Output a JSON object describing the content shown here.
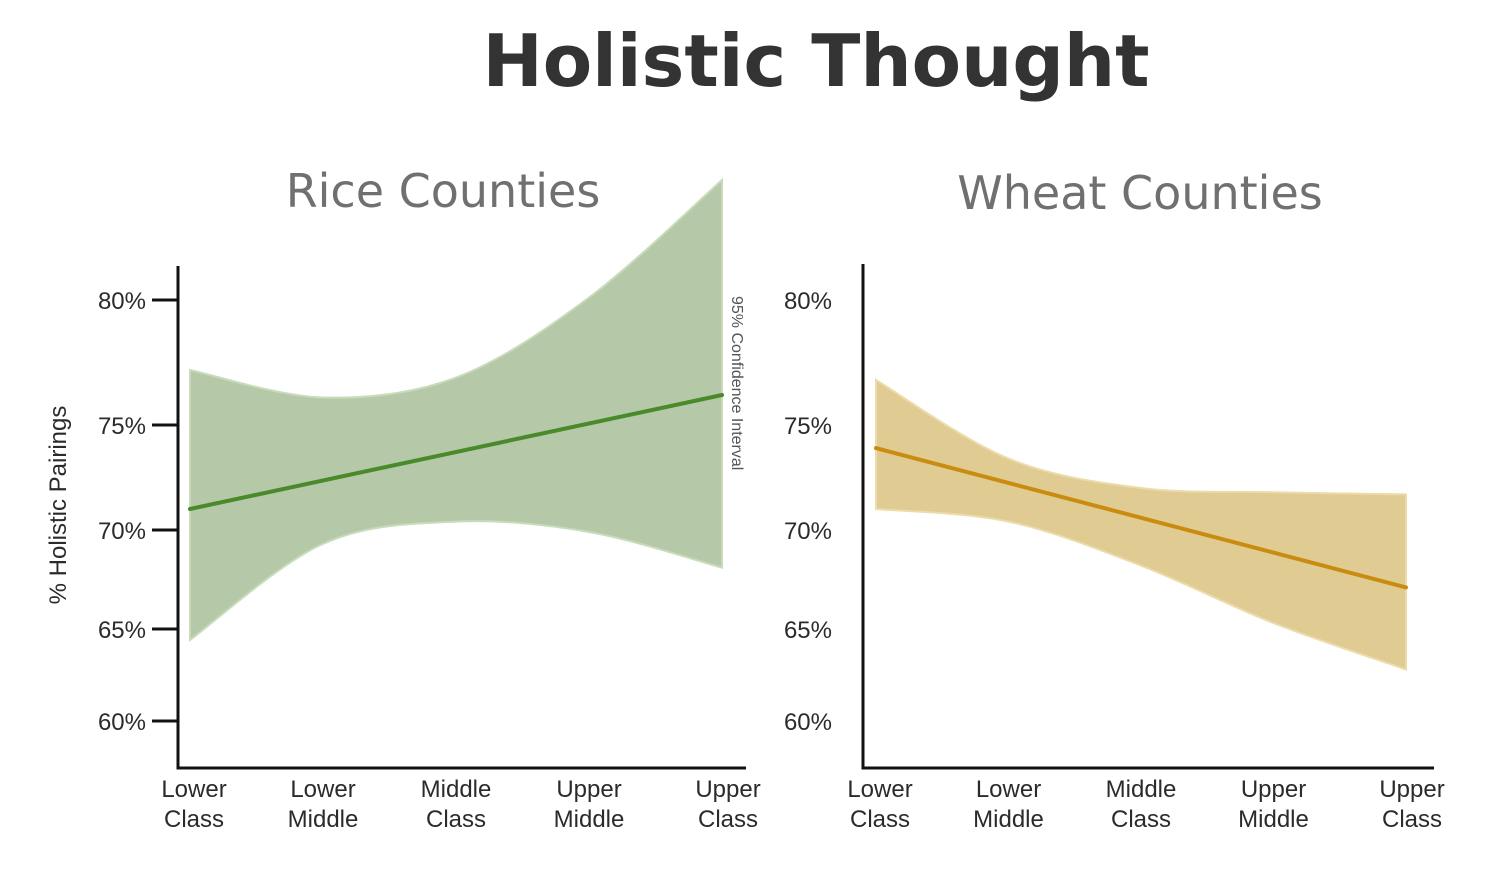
{
  "title": "Holistic Thought",
  "ylabel": "% Holistic Pairings",
  "ci_label": "95% Confidence Interval",
  "colors": {
    "rice_line": "#4a8a2a",
    "rice_band": "#b5c9a8",
    "rice_band_edge": "#c8dcbc",
    "wheat_line": "#c98c10",
    "wheat_band": "#e0cc92",
    "wheat_band_edge": "#ecdcab",
    "axis": "#111111"
  },
  "chart_data": [
    {
      "type": "line",
      "title": "Rice Counties",
      "categories": [
        "Lower Class",
        "Lower Middle",
        "Middle Class",
        "Upper Middle",
        "Upper Class"
      ],
      "category_lines": [
        [
          "Lower",
          "Class"
        ],
        [
          "Lower",
          "Middle"
        ],
        [
          "Middle",
          "Class"
        ],
        [
          "Upper",
          "Middle"
        ],
        [
          "Upper",
          "Class"
        ]
      ],
      "yticks": [
        60,
        65,
        70,
        75,
        80
      ],
      "ytick_labels": [
        "60%",
        "65%",
        "70%",
        "75%",
        "80%"
      ],
      "ylim": [
        58,
        81.5
      ],
      "series": [
        {
          "values": [
            71.0,
            72.3,
            73.6,
            74.9,
            76.2
          ],
          "ci_lower": [
            64.4,
            69.3,
            70.4,
            69.9,
            68.1
          ],
          "ci_upper": [
            77.2,
            76.1,
            76.9,
            80.1,
            84.8
          ]
        }
      ]
    },
    {
      "type": "line",
      "title": "Wheat Counties",
      "categories": [
        "Lower Class",
        "Lower Middle",
        "Middle Class",
        "Upper Middle",
        "Upper Class"
      ],
      "category_lines": [
        [
          "Lower",
          "Class"
        ],
        [
          "Lower",
          "Middle"
        ],
        [
          "Middle",
          "Class"
        ],
        [
          "Upper",
          "Middle"
        ],
        [
          "Upper",
          "Class"
        ]
      ],
      "yticks": [
        60,
        65,
        70,
        75,
        80
      ],
      "ytick_labels": [
        "60%",
        "65%",
        "70%",
        "75%",
        "80%"
      ],
      "ylim": [
        58,
        81.5
      ],
      "series": [
        {
          "values": [
            73.9,
            72.2,
            70.5,
            68.8,
            67.1
          ],
          "ci_lower": [
            71.0,
            70.4,
            68.2,
            65.3,
            62.8
          ],
          "ci_upper": [
            76.8,
            73.4,
            72.0,
            71.8,
            71.7
          ]
        }
      ]
    }
  ]
}
